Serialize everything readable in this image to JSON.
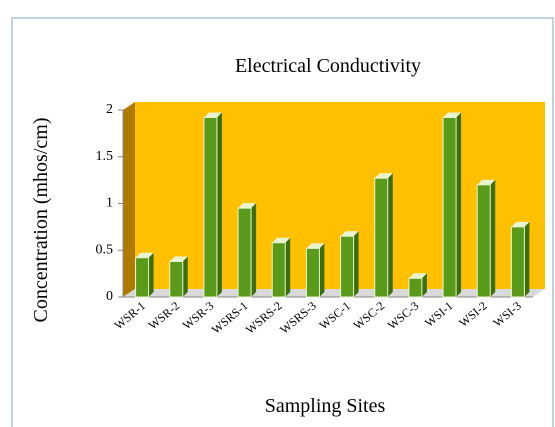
{
  "chart_data": {
    "type": "bar3d",
    "title": "Electrical Conductivity",
    "xlabel": "Sampling Sites",
    "ylabel": "Concentration (mhos/cm)",
    "categories": [
      "WSR-1",
      "WSR-2",
      "WSR-3",
      "WSRS-1",
      "WSRS-2",
      "WSRS-3",
      "WSC-1",
      "WSC-2",
      "WSC-3",
      "WSI-1",
      "WSI-2",
      "WSI-3"
    ],
    "values": [
      0.42,
      0.38,
      1.92,
      0.95,
      0.58,
      0.52,
      0.65,
      1.27,
      0.2,
      1.92,
      1.2,
      0.75
    ],
    "color": "#5a9a1a",
    "background": "#ffc000",
    "ylim": [
      0,
      2
    ],
    "yticks": [
      0,
      0.5,
      1,
      1.5,
      2
    ]
  }
}
